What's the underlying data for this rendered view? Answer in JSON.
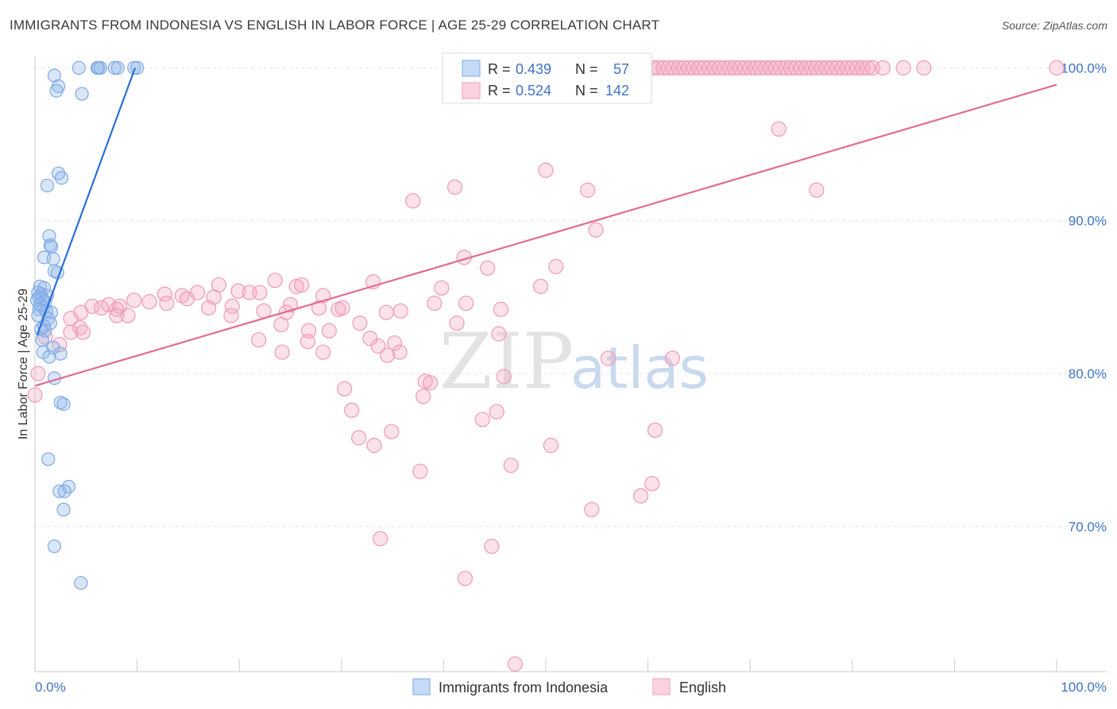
{
  "header": {
    "title": "IMMIGRANTS FROM INDONESIA VS ENGLISH IN LABOR FORCE | AGE 25-29 CORRELATION CHART",
    "source": "Source: ZipAtlas.com"
  },
  "watermark": {
    "part1": "ZIP",
    "part2": "atlas"
  },
  "legend": {
    "rows": [
      {
        "r_label": "R = ",
        "r_value": "0.439",
        "n_label": "N = ",
        "n_value": "57"
      },
      {
        "r_label": "R = ",
        "r_value": "0.524",
        "n_label": "N = ",
        "n_value": "142"
      }
    ]
  },
  "chart_data": {
    "type": "scatter",
    "title": "IMMIGRANTS FROM INDONESIA VS ENGLISH IN LABOR FORCE | AGE 25-29 CORRELATION CHART",
    "xlabel": "",
    "ylabel": "In Labor Force | Age 25-29",
    "xlim": [
      0,
      100
    ],
    "ylim": [
      60.5,
      100.8
    ],
    "x_tick_labels": [
      "0.0%",
      "100.0%"
    ],
    "y_ticks": [
      70,
      80,
      90,
      100
    ],
    "y_tick_labels": [
      "70.0%",
      "80.0%",
      "90.0%",
      "100.0%"
    ],
    "colors": {
      "blue": "#8fb6ea",
      "blue_line": "#2a6fd6",
      "pink": "#f4a9c2",
      "pink_line": "#e26b96"
    },
    "series": [
      {
        "name": "Immigrants from Indonesia",
        "color": "#8fb6ea",
        "trend": [
          [
            0.2,
            82.5
          ],
          [
            9.8,
            100.0
          ]
        ],
        "points": [
          [
            4.3,
            100
          ],
          [
            6.1,
            100
          ],
          [
            6.2,
            100
          ],
          [
            6.4,
            100
          ],
          [
            7.8,
            100
          ],
          [
            8.1,
            100
          ],
          [
            9.7,
            100
          ],
          [
            10.0,
            100
          ],
          [
            1.9,
            99.5
          ],
          [
            2.3,
            98.8
          ],
          [
            2.1,
            98.5
          ],
          [
            4.6,
            98.3
          ],
          [
            2.3,
            93.1
          ],
          [
            2.6,
            92.8
          ],
          [
            1.2,
            92.3
          ],
          [
            1.4,
            89.0
          ],
          [
            1.5,
            88.4
          ],
          [
            1.6,
            88.3
          ],
          [
            0.9,
            87.6
          ],
          [
            1.8,
            87.5
          ],
          [
            1.9,
            86.7
          ],
          [
            2.2,
            86.6
          ],
          [
            0.5,
            85.7
          ],
          [
            0.9,
            85.6
          ],
          [
            0.3,
            85.3
          ],
          [
            0.6,
            85.2
          ],
          [
            1.2,
            85.1
          ],
          [
            0.4,
            85.0
          ],
          [
            0.7,
            84.9
          ],
          [
            0.2,
            84.8
          ],
          [
            1.0,
            84.7
          ],
          [
            0.5,
            84.5
          ],
          [
            0.8,
            84.3
          ],
          [
            0.4,
            84.2
          ],
          [
            1.1,
            84.1
          ],
          [
            1.6,
            84.0
          ],
          [
            0.3,
            83.8
          ],
          [
            1.3,
            83.6
          ],
          [
            1.5,
            83.3
          ],
          [
            0.9,
            83.1
          ],
          [
            0.6,
            82.9
          ],
          [
            1.0,
            82.8
          ],
          [
            0.7,
            82.2
          ],
          [
            1.8,
            81.7
          ],
          [
            0.8,
            81.4
          ],
          [
            2.5,
            81.3
          ],
          [
            1.4,
            81.1
          ],
          [
            1.9,
            79.7
          ],
          [
            2.5,
            78.1
          ],
          [
            2.8,
            78.0
          ],
          [
            1.3,
            74.4
          ],
          [
            3.3,
            72.6
          ],
          [
            2.4,
            72.3
          ],
          [
            2.9,
            72.3
          ],
          [
            2.8,
            71.1
          ],
          [
            1.9,
            68.7
          ],
          [
            4.5,
            66.3
          ]
        ]
      },
      {
        "name": "English",
        "color": "#f4a9c2",
        "trend": [
          [
            0.0,
            79.2
          ],
          [
            100.0,
            98.9
          ]
        ],
        "points": [
          [
            60.5,
            100
          ],
          [
            61.0,
            100
          ],
          [
            61.5,
            100
          ],
          [
            62.0,
            100
          ],
          [
            62.5,
            100
          ],
          [
            63.0,
            100
          ],
          [
            63.5,
            100
          ],
          [
            64.0,
            100
          ],
          [
            64.5,
            100
          ],
          [
            65.0,
            100
          ],
          [
            65.5,
            100
          ],
          [
            66.0,
            100
          ],
          [
            66.5,
            100
          ],
          [
            67.0,
            100
          ],
          [
            67.5,
            100
          ],
          [
            68.0,
            100
          ],
          [
            68.5,
            100
          ],
          [
            69.0,
            100
          ],
          [
            69.5,
            100
          ],
          [
            70.0,
            100
          ],
          [
            70.5,
            100
          ],
          [
            71.0,
            100
          ],
          [
            71.5,
            100
          ],
          [
            72.0,
            100
          ],
          [
            72.5,
            100
          ],
          [
            73.0,
            100
          ],
          [
            73.5,
            100
          ],
          [
            74.0,
            100
          ],
          [
            74.5,
            100
          ],
          [
            75.0,
            100
          ],
          [
            75.5,
            100
          ],
          [
            76.0,
            100
          ],
          [
            76.5,
            100
          ],
          [
            77.0,
            100
          ],
          [
            77.5,
            100
          ],
          [
            78.0,
            100
          ],
          [
            78.5,
            100
          ],
          [
            79.0,
            100
          ],
          [
            79.5,
            100
          ],
          [
            80.0,
            100
          ],
          [
            80.5,
            100
          ],
          [
            81.0,
            100
          ],
          [
            81.5,
            100
          ],
          [
            82.0,
            100
          ],
          [
            83.0,
            100
          ],
          [
            85.0,
            100
          ],
          [
            87.0,
            100
          ],
          [
            100.0,
            100
          ],
          [
            72.8,
            96.0
          ],
          [
            50.0,
            93.3
          ],
          [
            41.1,
            92.2
          ],
          [
            54.1,
            92.0
          ],
          [
            76.5,
            92.0
          ],
          [
            37.0,
            91.3
          ],
          [
            54.9,
            89.4
          ],
          [
            42.0,
            87.6
          ],
          [
            44.3,
            86.9
          ],
          [
            51.0,
            87.0
          ],
          [
            23.5,
            86.1
          ],
          [
            33.1,
            86.0
          ],
          [
            25.6,
            85.7
          ],
          [
            26.1,
            85.8
          ],
          [
            39.8,
            85.6
          ],
          [
            49.5,
            85.7
          ],
          [
            18.0,
            85.8
          ],
          [
            15.9,
            85.3
          ],
          [
            19.9,
            85.4
          ],
          [
            21.0,
            85.3
          ],
          [
            22.0,
            85.3
          ],
          [
            12.7,
            85.2
          ],
          [
            14.4,
            85.1
          ],
          [
            17.5,
            85.0
          ],
          [
            14.9,
            84.9
          ],
          [
            28.2,
            85.1
          ],
          [
            9.7,
            84.8
          ],
          [
            11.2,
            84.7
          ],
          [
            12.9,
            84.6
          ],
          [
            7.2,
            84.5
          ],
          [
            5.6,
            84.4
          ],
          [
            6.5,
            84.3
          ],
          [
            8.3,
            84.4
          ],
          [
            8.0,
            84.2
          ],
          [
            25.0,
            84.5
          ],
          [
            27.8,
            84.3
          ],
          [
            30.1,
            84.3
          ],
          [
            39.1,
            84.6
          ],
          [
            42.2,
            84.6
          ],
          [
            19.3,
            84.4
          ],
          [
            17.0,
            84.3
          ],
          [
            22.4,
            84.1
          ],
          [
            24.6,
            84.0
          ],
          [
            29.7,
            84.2
          ],
          [
            34.4,
            84.0
          ],
          [
            35.8,
            84.1
          ],
          [
            45.6,
            84.2
          ],
          [
            4.5,
            84.0
          ],
          [
            8.0,
            83.8
          ],
          [
            9.1,
            83.8
          ],
          [
            19.2,
            83.8
          ],
          [
            3.5,
            83.6
          ],
          [
            31.8,
            83.3
          ],
          [
            24.1,
            83.2
          ],
          [
            41.3,
            83.3
          ],
          [
            4.4,
            83.0
          ],
          [
            4.7,
            82.7
          ],
          [
            3.5,
            82.7
          ],
          [
            26.8,
            82.8
          ],
          [
            28.8,
            82.8
          ],
          [
            45.4,
            82.6
          ],
          [
            1.0,
            82.4
          ],
          [
            2.4,
            81.9
          ],
          [
            21.9,
            82.2
          ],
          [
            32.8,
            82.3
          ],
          [
            26.7,
            82.1
          ],
          [
            35.2,
            82.0
          ],
          [
            33.6,
            81.8
          ],
          [
            28.2,
            81.4
          ],
          [
            35.7,
            81.4
          ],
          [
            24.2,
            81.4
          ],
          [
            34.5,
            81.2
          ],
          [
            56.1,
            81.0
          ],
          [
            62.4,
            81.0
          ],
          [
            0.3,
            80.0
          ],
          [
            45.9,
            79.8
          ],
          [
            38.2,
            79.5
          ],
          [
            38.7,
            79.4
          ],
          [
            30.3,
            79.0
          ],
          [
            0.0,
            78.6
          ],
          [
            38.0,
            78.5
          ],
          [
            31.0,
            77.6
          ],
          [
            45.2,
            77.5
          ],
          [
            43.8,
            77.0
          ],
          [
            34.9,
            76.2
          ],
          [
            60.7,
            76.3
          ],
          [
            31.7,
            75.8
          ],
          [
            33.2,
            75.3
          ],
          [
            50.5,
            75.3
          ],
          [
            46.6,
            74.0
          ],
          [
            37.7,
            73.6
          ],
          [
            60.4,
            72.8
          ],
          [
            59.3,
            72.0
          ],
          [
            54.5,
            71.1
          ],
          [
            33.8,
            69.2
          ],
          [
            44.7,
            68.7
          ],
          [
            42.1,
            66.6
          ],
          [
            47.0,
            61.0
          ]
        ]
      }
    ]
  }
}
